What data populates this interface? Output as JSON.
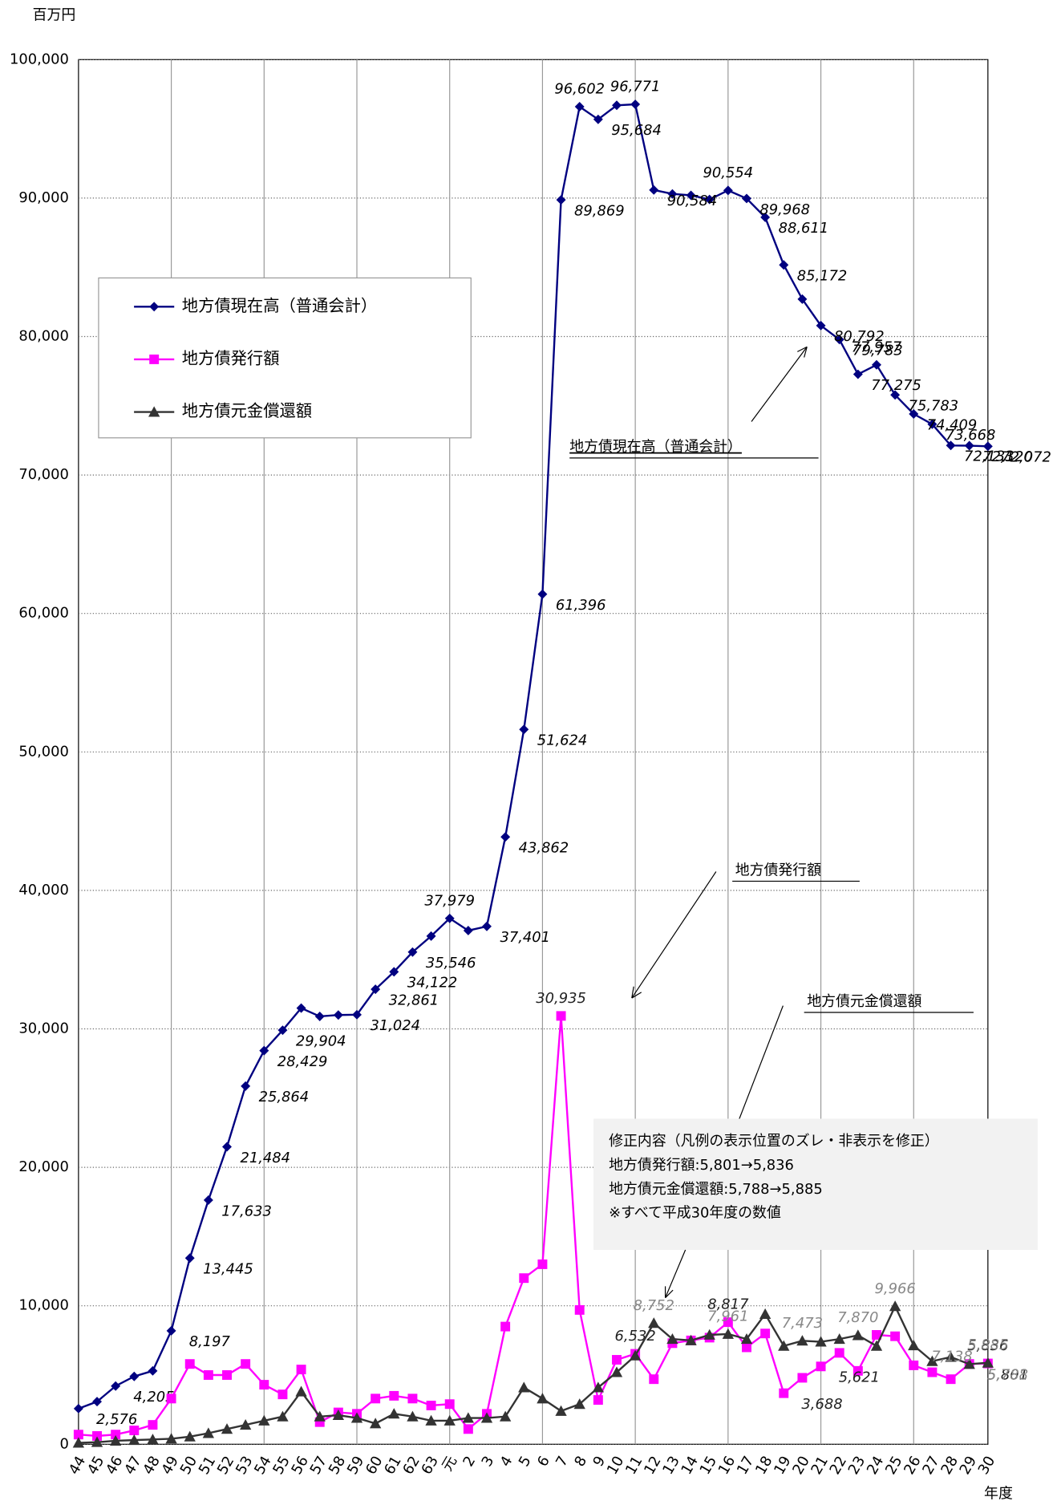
{
  "chart_data": {
    "type": "line",
    "unit_label": "百万円",
    "x_label": "年度",
    "categories": [
      "44",
      "45",
      "46",
      "47",
      "48",
      "49",
      "50",
      "51",
      "52",
      "53",
      "54",
      "55",
      "56",
      "57",
      "58",
      "59",
      "60",
      "61",
      "62",
      "63",
      "元",
      "2",
      "3",
      "4",
      "5",
      "6",
      "7",
      "8",
      "9",
      "10",
      "11",
      "12",
      "13",
      "14",
      "15",
      "16",
      "17",
      "18",
      "19",
      "20",
      "21",
      "22",
      "23",
      "24",
      "25",
      "26",
      "27",
      "28",
      "29",
      "30"
    ],
    "ylim": [
      0,
      100000
    ],
    "yticks": [
      0,
      {
        "value": 10000,
        "label": "10,000"
      },
      {
        "value": 20000,
        "label": "20,000"
      },
      {
        "value": 30000,
        "label": "30,000"
      },
      {
        "value": 40000,
        "label": "40,000"
      },
      {
        "value": 50000,
        "label": "50,000"
      },
      {
        "value": 60000,
        "label": "60,000"
      },
      {
        "value": 70000,
        "label": "70,000"
      },
      {
        "value": 80000,
        "label": "80,000"
      },
      {
        "value": 90000,
        "label": "90,000"
      },
      {
        "value": 100000,
        "label": "100,000"
      }
    ],
    "grid": true,
    "series": [
      {
        "name": "地方債現在高（普通会計）",
        "color": "#000080",
        "marker": "diamond",
        "values": [
          2576,
          3080,
          4205,
          4900,
          5300,
          8197,
          13445,
          17633,
          21484,
          25864,
          28429,
          29904,
          31500,
          30900,
          31000,
          31024,
          32861,
          34122,
          35546,
          36700,
          37979,
          37100,
          37401,
          43862,
          51624,
          61396,
          89869,
          96602,
          95684,
          96700,
          96771,
          90584,
          90300,
          90200,
          89900,
          90554,
          89968,
          88611,
          85172,
          82700,
          80792,
          79783,
          77275,
          77957,
          75783,
          74409,
          73668,
          72133,
          72120,
          72072
        ],
        "value_labels": [
          "2,576",
          null,
          "4,205",
          null,
          null,
          "8,197",
          "13,445",
          "17,633",
          "21,484",
          "25,864",
          "28,429",
          "29,904",
          null,
          null,
          null,
          "31,024",
          "32,861",
          "34,122",
          "35,546",
          null,
          "37,979",
          null,
          "37,401",
          "43,862",
          "51,624",
          "61,396",
          "89,869",
          "96,602",
          "95,684",
          null,
          "96,771",
          "90,584",
          null,
          null,
          null,
          "90,554",
          "89,968",
          "88,611",
          "85,172",
          null,
          "80,792",
          "79,783",
          "77,275",
          "77,957",
          "75,783",
          "74,409",
          "73,668",
          "72,133",
          "72,120",
          "72,072"
        ]
      },
      {
        "name": "地方債発行額",
        "color": "#ff00ff",
        "marker": "square",
        "values": [
          700,
          600,
          700,
          1000,
          1400,
          3300,
          5800,
          5000,
          5000,
          5800,
          4300,
          3600,
          5400,
          1600,
          2300,
          2200,
          3300,
          3500,
          3300,
          2800,
          2900,
          1100,
          2200,
          8500,
          12000,
          13000,
          30935,
          9700,
          3200,
          6100,
          6532,
          4700,
          7300,
          7500,
          7700,
          8817,
          7000,
          8000,
          3688,
          4800,
          5621,
          6600,
          5300,
          7900,
          7800,
          5700,
          5200,
          4700,
          5801,
          5836
        ],
        "value_labels": [
          null,
          null,
          null,
          null,
          null,
          null,
          null,
          null,
          null,
          null,
          null,
          null,
          null,
          null,
          null,
          null,
          null,
          null,
          null,
          null,
          null,
          null,
          null,
          null,
          null,
          null,
          "30,935",
          null,
          null,
          null,
          "6,532",
          null,
          null,
          null,
          null,
          "8,817",
          null,
          null,
          "3,688",
          null,
          "5,621",
          null,
          null,
          null,
          null,
          null,
          null,
          null,
          "5,801",
          "5,836"
        ]
      },
      {
        "name": "地方債元金償還額",
        "color": "#333333",
        "marker": "triangle",
        "values": [
          100,
          150,
          250,
          300,
          350,
          400,
          550,
          800,
          1100,
          1400,
          1700,
          2000,
          3800,
          2000,
          2100,
          1900,
          1500,
          2200,
          2000,
          1700,
          1700,
          1900,
          1900,
          2000,
          4100,
          3300,
          2400,
          2900,
          4100,
          5200,
          6400,
          8752,
          7600,
          7500,
          7900,
          7961,
          7600,
          9400,
          7100,
          7473,
          7400,
          7600,
          7870,
          7100,
          9966,
          7138,
          6000,
          6300,
          5788,
          5885
        ],
        "value_labels": [
          null,
          null,
          null,
          null,
          null,
          null,
          null,
          null,
          null,
          null,
          null,
          null,
          null,
          null,
          null,
          null,
          null,
          null,
          null,
          null,
          null,
          null,
          null,
          null,
          null,
          null,
          null,
          null,
          null,
          null,
          null,
          "8,752",
          null,
          null,
          null,
          "7,961",
          null,
          null,
          null,
          "7,473",
          null,
          null,
          "7,870",
          null,
          "9,966",
          "7,138",
          null,
          null,
          "5,788",
          "5,885"
        ]
      }
    ],
    "annotations": [
      "地方債現在高（普通会計）",
      "地方債発行額",
      "地方債元金償還額"
    ],
    "note": [
      "修正内容（凡例の表示位置のズレ・非表示を修正）",
      "地方債発行額:5,801→5,836",
      "地方債元金償還額:5,788→5,885",
      "※すべて平成30年度の数値"
    ]
  }
}
